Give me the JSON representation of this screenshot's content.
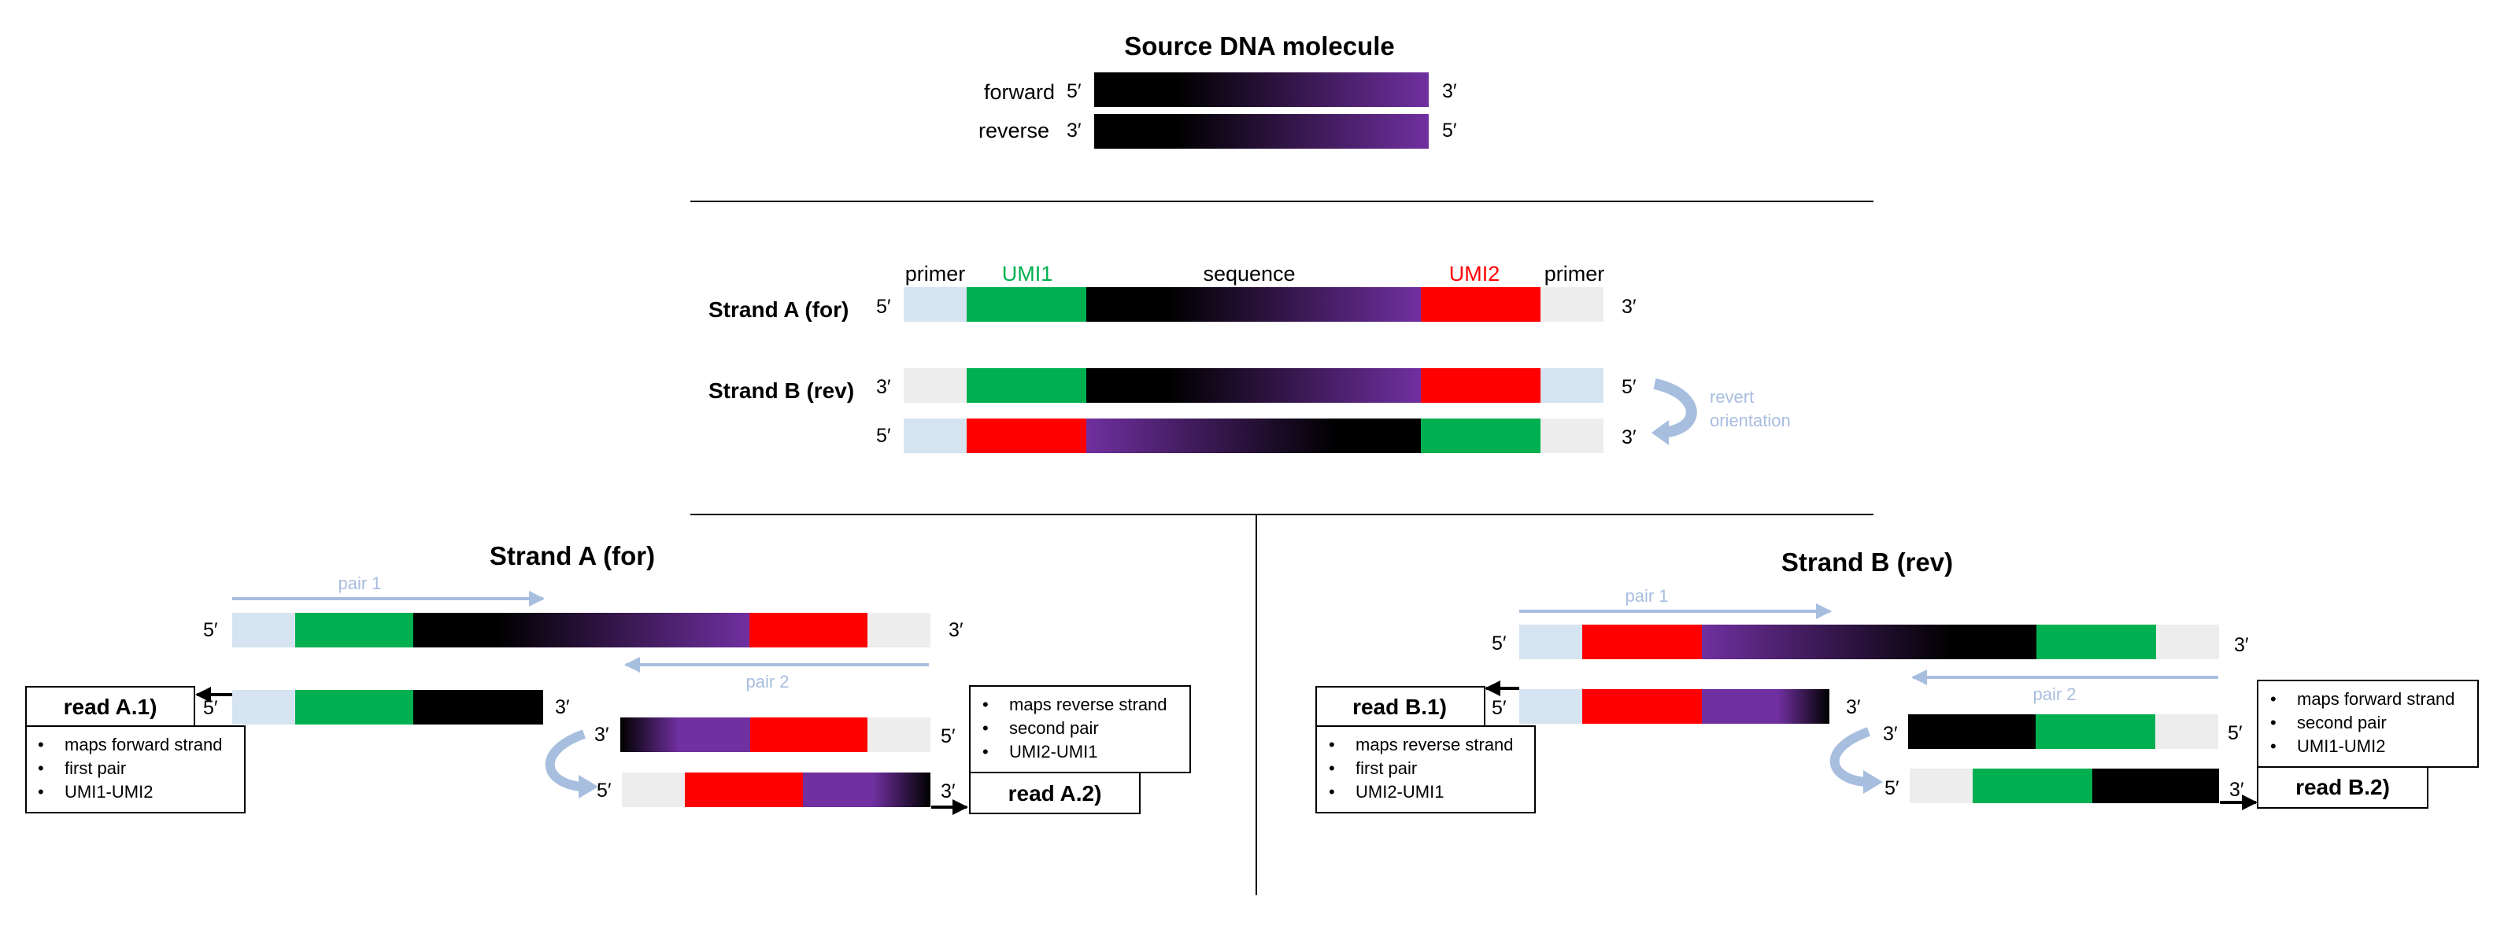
{
  "colors": {
    "primer_light_blue": "#d6e3f0",
    "primer_light_gray": "#ededed",
    "umi1_green": "#00b050",
    "umi2_red": "#ff0000",
    "sequence_black": "#000000",
    "sequence_purple": "#7030a0",
    "annotation_blue": "#a8bedf"
  },
  "source": {
    "title": "Source DNA molecule",
    "forward_label": "forward",
    "reverse_label": "reverse",
    "forward_left_end": "5′",
    "forward_right_end": "3′",
    "reverse_left_end": "3′",
    "reverse_right_end": "5′"
  },
  "middle": {
    "header_primer_left": "primer",
    "header_umi1": "UMI1",
    "header_sequence": "sequence",
    "header_umi2": "UMI2",
    "header_primer_right": "primer",
    "strand_a_label": "Strand A (for)",
    "strand_b_label": "Strand B (rev)",
    "a_left_end": "5′",
    "a_right_end": "3′",
    "b_left_end": "3′",
    "b_right_end": "5′",
    "b2_left_end": "5′",
    "b2_right_end": "3′",
    "revert_line1": "revert",
    "revert_line2": "orientation"
  },
  "panel_a": {
    "title": "Strand A (for)",
    "pair1": "pair 1",
    "pair2": "pair 2",
    "main_left_end": "5′",
    "main_right_end": "3′",
    "read1_left_end": "5′",
    "read1_right_end": "3′",
    "read2_top_left_end": "3′",
    "read2_top_right_end": "5′",
    "read2_bottom_left_end": "5′",
    "read2_bottom_right_end": "3′",
    "read1_label": "read A.1)",
    "read1_bullets": [
      "maps forward strand",
      "first pair",
      "UMI1-UMI2"
    ],
    "read2_label": "read A.2)",
    "read2_bullets": [
      "maps reverse strand",
      "second pair",
      "UMI2-UMI1"
    ]
  },
  "panel_b": {
    "title": "Strand B (rev)",
    "pair1": "pair 1",
    "pair2": "pair 2",
    "main_left_end": "5′",
    "main_right_end": "3′",
    "read1_left_end": "5′",
    "read1_right_end": "3′",
    "read2_top_left_end": "3′",
    "read2_top_right_end": "5′",
    "read2_bottom_left_end": "5′",
    "read2_bottom_right_end": "3′",
    "read1_label": "read B.1)",
    "read1_bullets": [
      "maps reverse strand",
      "first pair",
      "UMI2-UMI1"
    ],
    "read2_label": "read B.2)",
    "read2_bullets": [
      "maps forward strand",
      "second pair",
      "UMI1-UMI2"
    ]
  },
  "bullet_glyph": "•"
}
